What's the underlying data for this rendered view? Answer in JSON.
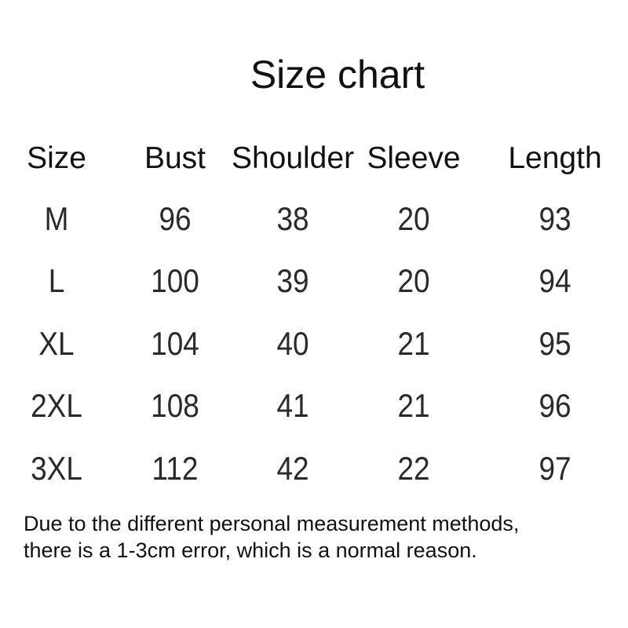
{
  "title": "Size chart",
  "table": {
    "headers": [
      "Size",
      "Bust",
      "Shoulder",
      "Sleeve",
      "Length"
    ],
    "rows": [
      [
        "M",
        "96",
        "38",
        "20",
        "93"
      ],
      [
        "L",
        "100",
        "39",
        "20",
        "94"
      ],
      [
        "XL",
        "104",
        "40",
        "21",
        "95"
      ],
      [
        "2XL",
        "108",
        "41",
        "21",
        "96"
      ],
      [
        "3XL",
        "112",
        "42",
        "22",
        "97"
      ]
    ]
  },
  "note": {
    "line1": "Due to the different personal measurement methods,",
    "line2": "there is a 1-3cm error, which is a normal reason."
  }
}
